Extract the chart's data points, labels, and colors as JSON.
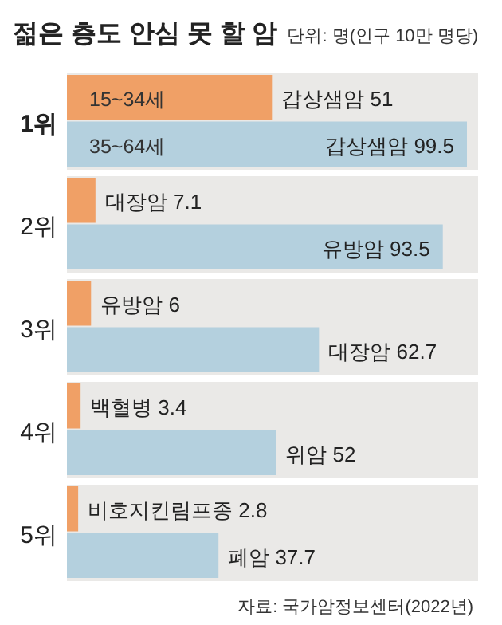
{
  "chart_data": {
    "type": "bar",
    "orientation": "horizontal",
    "title": "젊은 층도 안심 못 할 암",
    "subtitle": "단위: 명(인구 10만 명당)",
    "categories": [
      "1위",
      "2위",
      "3위",
      "4위",
      "5위"
    ],
    "series": [
      {
        "name": "15~34세",
        "color": "#f0a066",
        "values": [
          51,
          7.1,
          6,
          3.4,
          2.8
        ],
        "value_labels": [
          "갑상샘암 51",
          "대장암 7.1",
          "유방암 6",
          "백혈병 3.4",
          "비호지킨림프종 2.8"
        ]
      },
      {
        "name": "35~64세",
        "color": "#b4d0de",
        "values": [
          99.5,
          93.5,
          62.7,
          52,
          37.7
        ],
        "value_labels": [
          "갑상샘암 99.5",
          "유방암 93.5",
          "대장암 62.7",
          "위암 52",
          "폐암 37.7"
        ]
      }
    ],
    "annotations": [
      "자료: 국가암정보센터(2022년)"
    ]
  }
}
